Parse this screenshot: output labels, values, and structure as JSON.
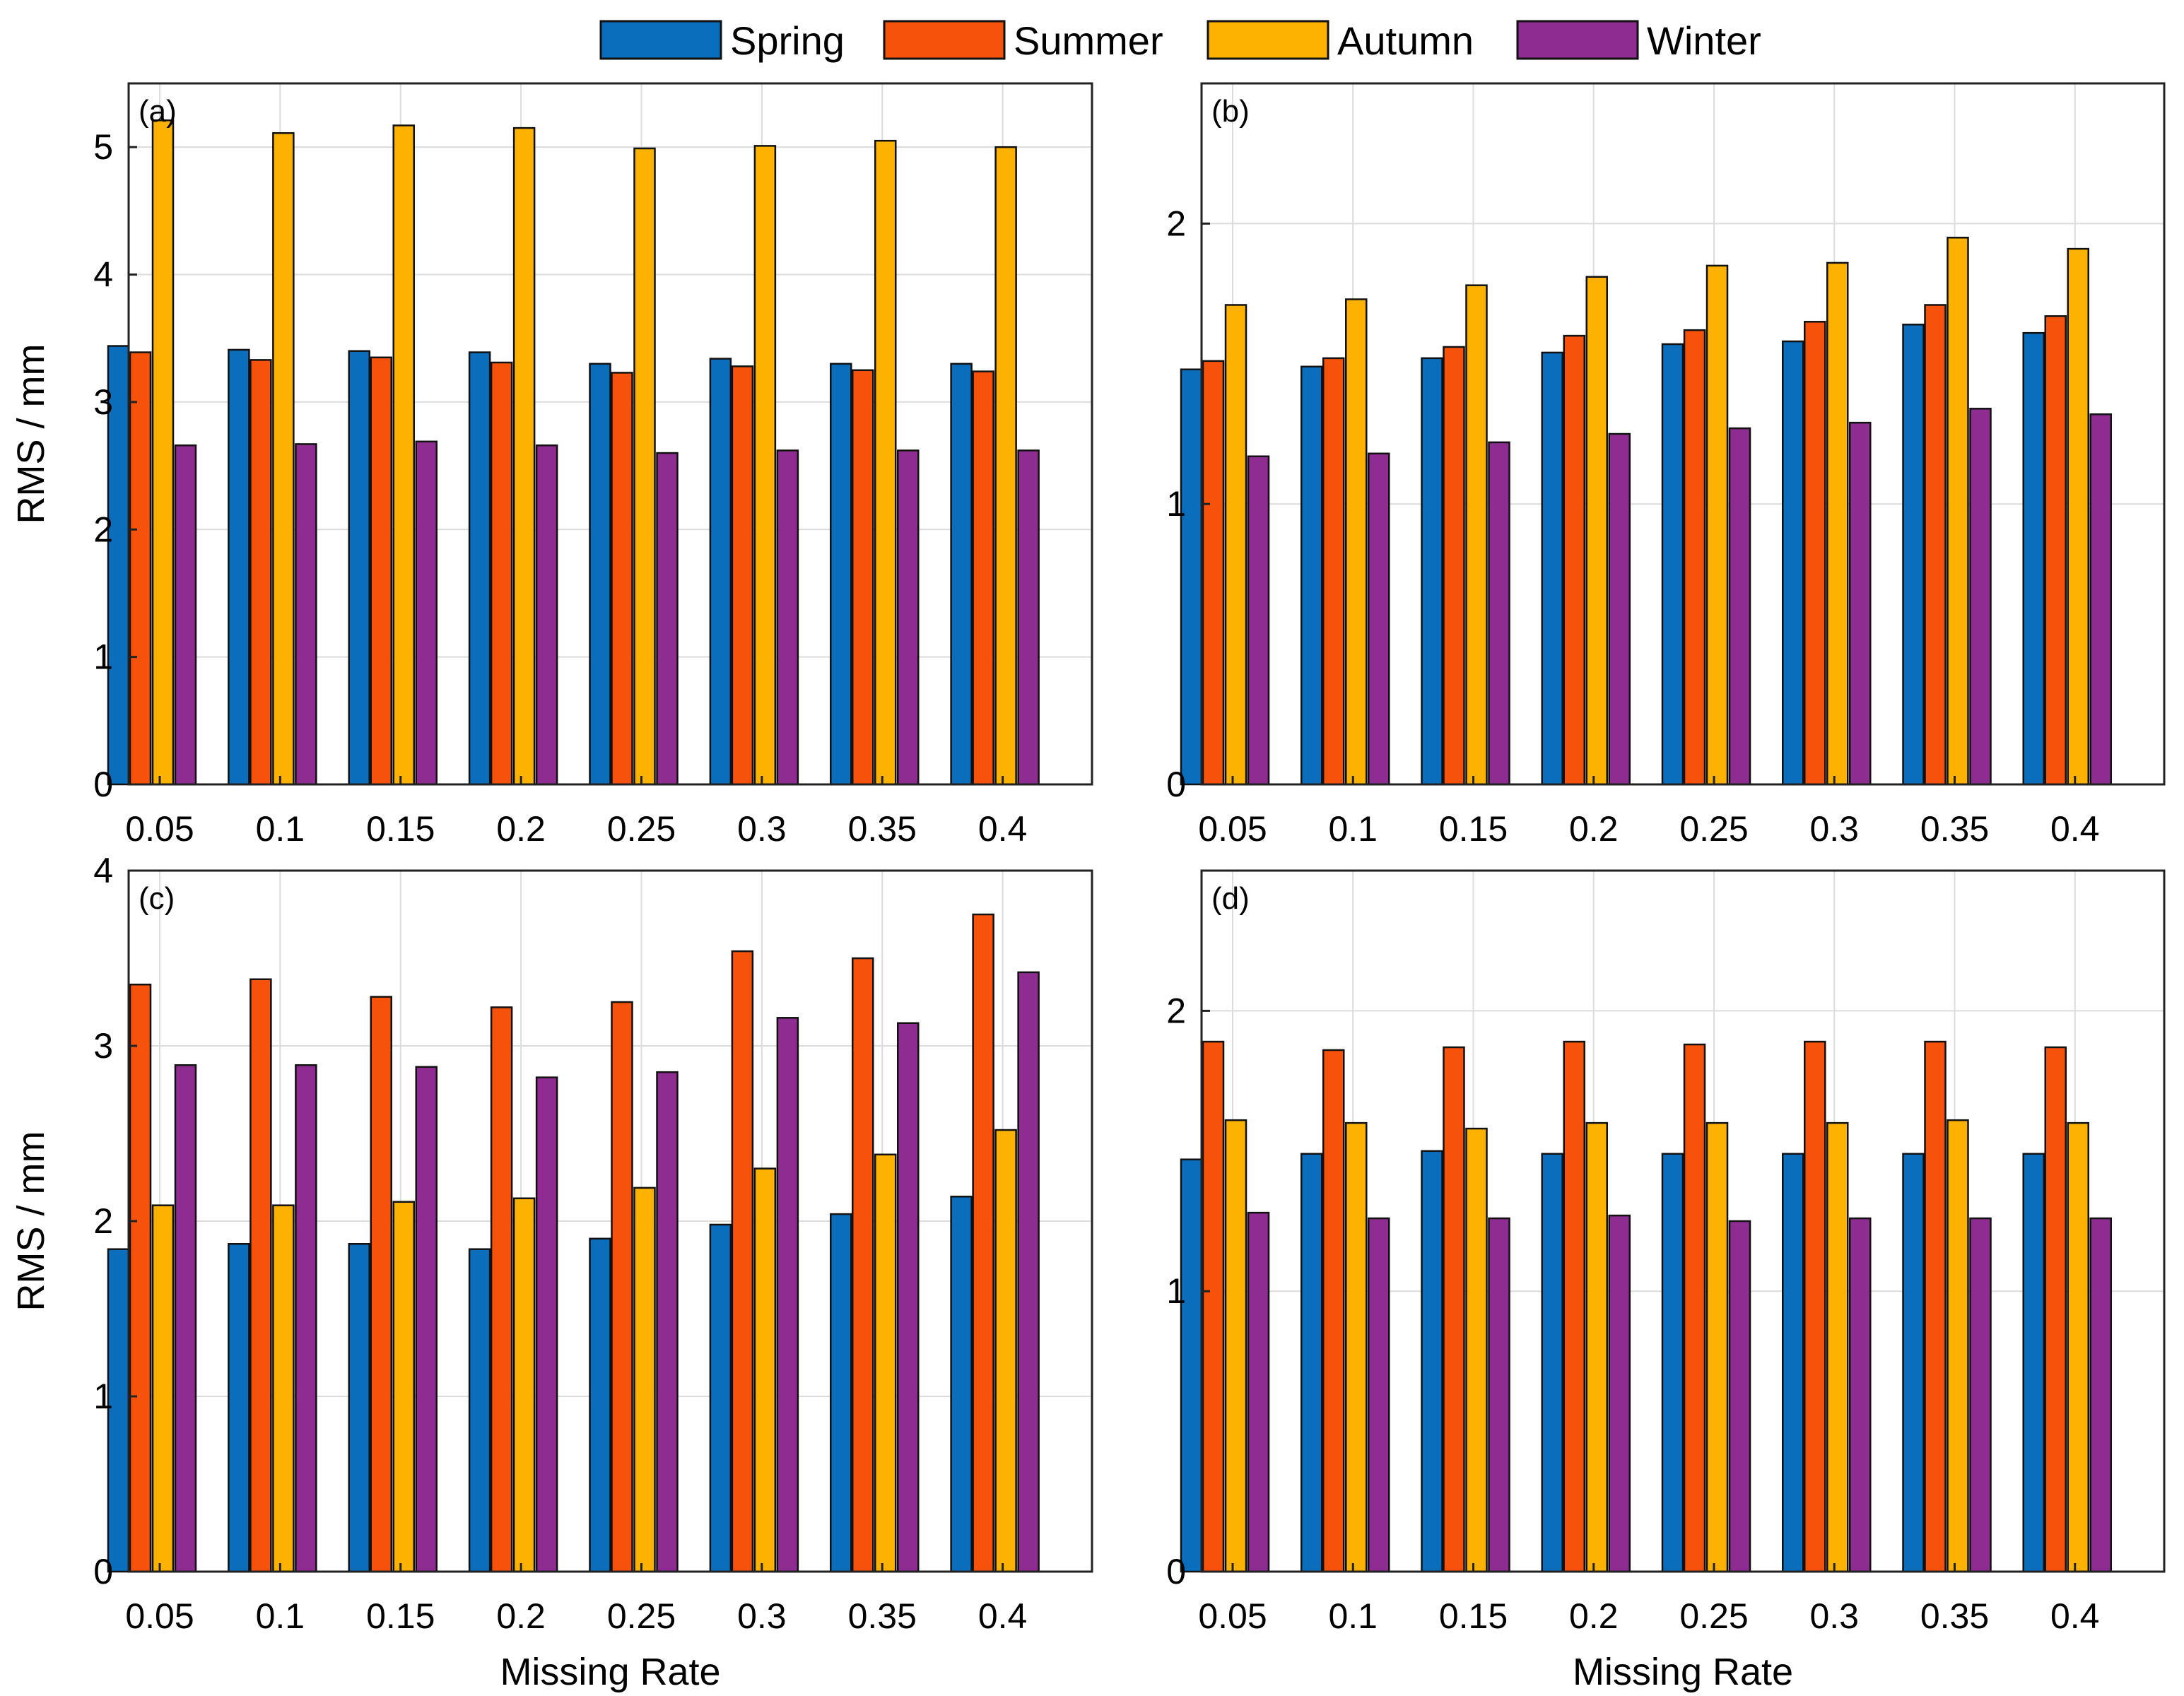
{
  "legend": [
    {
      "name": "Spring",
      "color": "#0A6EBD"
    },
    {
      "name": "Summer",
      "color": "#F6520C"
    },
    {
      "name": "Autumn",
      "color": "#FDB100"
    },
    {
      "name": "Winter",
      "color": "#8E2C91"
    }
  ],
  "chart_data": [
    {
      "type": "bar",
      "panel": "(a)",
      "xlabel": "",
      "ylabel": "RMS / mm",
      "ylim": [
        0,
        5.5
      ],
      "yticks": [
        "0",
        "1",
        "2",
        "3",
        "4",
        "5"
      ],
      "grid": true,
      "categories": [
        "0.05",
        "0.1",
        "0.15",
        "0.2",
        "0.25",
        "0.3",
        "0.35",
        "0.4"
      ],
      "series": [
        {
          "name": "Spring",
          "values": [
            3.44,
            3.41,
            3.4,
            3.39,
            3.3,
            3.34,
            3.3,
            3.3
          ]
        },
        {
          "name": "Summer",
          "values": [
            3.39,
            3.33,
            3.35,
            3.31,
            3.23,
            3.28,
            3.25,
            3.24
          ]
        },
        {
          "name": "Autumn",
          "values": [
            5.21,
            5.11,
            5.17,
            5.15,
            4.99,
            5.01,
            5.05,
            5.0
          ]
        },
        {
          "name": "Winter",
          "values": [
            2.66,
            2.67,
            2.69,
            2.66,
            2.6,
            2.62,
            2.62,
            2.62
          ]
        }
      ]
    },
    {
      "type": "bar",
      "panel": "(b)",
      "xlabel": "",
      "ylabel": "",
      "ylim": [
        0,
        2.5
      ],
      "yticks": [
        "0",
        "1",
        "2"
      ],
      "grid": true,
      "categories": [
        "0.05",
        "0.1",
        "0.15",
        "0.2",
        "0.25",
        "0.3",
        "0.35",
        "0.4"
      ],
      "series": [
        {
          "name": "Spring",
          "values": [
            1.48,
            1.49,
            1.52,
            1.54,
            1.57,
            1.58,
            1.64,
            1.61
          ]
        },
        {
          "name": "Summer",
          "values": [
            1.51,
            1.52,
            1.56,
            1.6,
            1.62,
            1.65,
            1.71,
            1.67
          ]
        },
        {
          "name": "Autumn",
          "values": [
            1.71,
            1.73,
            1.78,
            1.81,
            1.85,
            1.86,
            1.95,
            1.91
          ]
        },
        {
          "name": "Winter",
          "values": [
            1.17,
            1.18,
            1.22,
            1.25,
            1.27,
            1.29,
            1.34,
            1.32
          ]
        }
      ]
    },
    {
      "type": "bar",
      "panel": "(c)",
      "xlabel": "Missing Rate",
      "ylabel": "RMS / mm",
      "ylim": [
        0,
        4
      ],
      "yticks": [
        "0",
        "1",
        "2",
        "3",
        "4"
      ],
      "grid": true,
      "categories": [
        "0.05",
        "0.1",
        "0.15",
        "0.2",
        "0.25",
        "0.3",
        "0.35",
        "0.4"
      ],
      "series": [
        {
          "name": "Spring",
          "values": [
            1.84,
            1.87,
            1.87,
            1.84,
            1.9,
            1.98,
            2.04,
            2.14
          ]
        },
        {
          "name": "Summer",
          "values": [
            3.35,
            3.38,
            3.28,
            3.22,
            3.25,
            3.54,
            3.5,
            3.75
          ]
        },
        {
          "name": "Autumn",
          "values": [
            2.09,
            2.09,
            2.11,
            2.13,
            2.19,
            2.3,
            2.38,
            2.52
          ]
        },
        {
          "name": "Winter",
          "values": [
            2.89,
            2.89,
            2.88,
            2.82,
            2.85,
            3.16,
            3.13,
            3.42
          ]
        }
      ]
    },
    {
      "type": "bar",
      "panel": "(d)",
      "xlabel": "Missing Rate",
      "ylabel": "",
      "ylim": [
        0,
        2.5
      ],
      "yticks": [
        "0",
        "1",
        "2"
      ],
      "grid": true,
      "categories": [
        "0.05",
        "0.1",
        "0.15",
        "0.2",
        "0.25",
        "0.3",
        "0.35",
        "0.4"
      ],
      "series": [
        {
          "name": "Spring",
          "values": [
            1.47,
            1.49,
            1.5,
            1.49,
            1.49,
            1.49,
            1.49,
            1.49
          ]
        },
        {
          "name": "Summer",
          "values": [
            1.89,
            1.86,
            1.87,
            1.89,
            1.88,
            1.89,
            1.89,
            1.87
          ]
        },
        {
          "name": "Autumn",
          "values": [
            1.61,
            1.6,
            1.58,
            1.6,
            1.6,
            1.6,
            1.61,
            1.6
          ]
        },
        {
          "name": "Winter",
          "values": [
            1.28,
            1.26,
            1.26,
            1.27,
            1.25,
            1.26,
            1.26,
            1.26
          ]
        }
      ]
    }
  ]
}
